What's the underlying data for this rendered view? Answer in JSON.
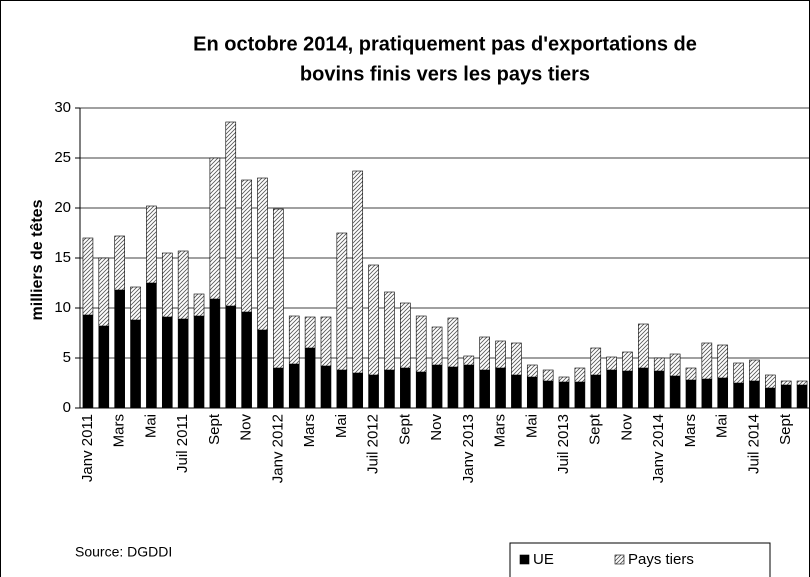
{
  "chart_data": {
    "type": "stacked-bar",
    "title": [
      "En octobre 2014, pratiquement pas d'exportations de",
      "bovins finis vers les pays tiers"
    ],
    "y_label": "milliers de têtes",
    "source": "Source: DGDDI",
    "categories": [
      "Janv 2011",
      null,
      "Mars",
      null,
      "Mai",
      null,
      "Juil 2011",
      null,
      "Sept",
      null,
      "Nov",
      null,
      "Janv 2012",
      null,
      "Mars",
      null,
      "Mai",
      null,
      "Juil 2012",
      null,
      "Sept",
      null,
      "Nov",
      null,
      "Janv 2013",
      null,
      "Mars",
      null,
      "Mai",
      null,
      "Juil 2013",
      null,
      "Sept",
      null,
      "Nov",
      null,
      "Janv 2014",
      null,
      "Mars",
      null,
      "Mai",
      null,
      "Juil 2014",
      null,
      "Sept",
      null
    ],
    "series": [
      {
        "name": "UE",
        "color": "#000000",
        "values": [
          9.3,
          8.2,
          11.8,
          8.8,
          12.5,
          9.1,
          8.9,
          9.2,
          10.9,
          10.2,
          9.6,
          7.8,
          4.0,
          4.4,
          6.0,
          4.2,
          3.8,
          3.5,
          3.3,
          3.8,
          4.0,
          3.6,
          4.3,
          4.1,
          4.3,
          3.8,
          4.0,
          3.3,
          3.1,
          2.7,
          2.6,
          2.6,
          3.3,
          3.8,
          3.7,
          4.0,
          3.7,
          3.2,
          2.8,
          2.9,
          3.0,
          2.5,
          2.7,
          2.0,
          2.3,
          2.3
        ]
      },
      {
        "name": "Pays tiers",
        "color": "#555555",
        "values": [
          7.7,
          6.8,
          5.4,
          3.3,
          7.7,
          6.4,
          6.8,
          2.2,
          14.1,
          18.4,
          13.2,
          15.2,
          15.9,
          4.8,
          3.1,
          4.9,
          13.7,
          20.2,
          11.0,
          7.8,
          6.5,
          5.6,
          3.8,
          4.9,
          0.9,
          3.3,
          2.7,
          3.2,
          1.2,
          1.1,
          0.5,
          1.4,
          2.7,
          1.3,
          1.9,
          4.4,
          1.3,
          2.2,
          1.2,
          3.6,
          3.3,
          2.0,
          2.1,
          1.3,
          0.4,
          0.4
        ]
      }
    ],
    "ylim": [
      0,
      30
    ],
    "yticks": [
      0,
      5,
      10,
      15,
      20,
      25,
      30
    ],
    "grid": true,
    "legend": "bottom-right"
  }
}
